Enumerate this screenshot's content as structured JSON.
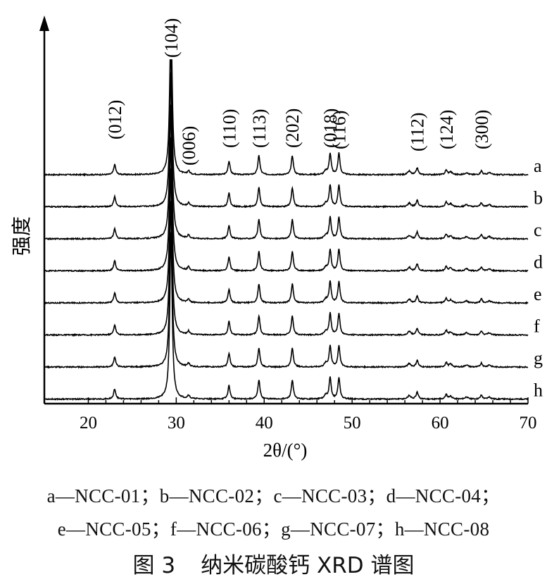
{
  "chart_data": {
    "type": "line",
    "title": "",
    "xlabel": "2θ/(°)",
    "ylabel": "强度",
    "xlim": [
      15,
      70
    ],
    "xticks": [
      20,
      30,
      40,
      50,
      60,
      70
    ],
    "grid": false,
    "peaks": [
      {
        "x": 23.0,
        "label": "(012)",
        "rel": 0.09
      },
      {
        "x": 29.4,
        "label": "(104)",
        "rel": 1.0
      },
      {
        "x": 31.4,
        "label": "(006)",
        "rel": 0.03
      },
      {
        "x": 36.0,
        "label": "(110)",
        "rel": 0.12
      },
      {
        "x": 39.4,
        "label": "(113)",
        "rel": 0.17
      },
      {
        "x": 43.2,
        "label": "(202)",
        "rel": 0.17
      },
      {
        "x": 47.5,
        "label": "(018)",
        "rel": 0.19
      },
      {
        "x": 48.5,
        "label": "(116)",
        "rel": 0.19
      },
      {
        "x": 57.4,
        "label": "(112)",
        "rel": 0.06
      },
      {
        "x": 60.7,
        "label": "(124)",
        "rel": 0.04
      },
      {
        "x": 64.7,
        "label": "(300)",
        "rel": 0.035
      }
    ],
    "series": [
      {
        "name": "a",
        "sample": "NCC-01"
      },
      {
        "name": "b",
        "sample": "NCC-02"
      },
      {
        "name": "c",
        "sample": "NCC-03"
      },
      {
        "name": "d",
        "sample": "NCC-04"
      },
      {
        "name": "e",
        "sample": "NCC-05"
      },
      {
        "name": "f",
        "sample": "NCC-06"
      },
      {
        "name": "g",
        "sample": "NCC-07"
      },
      {
        "name": "h",
        "sample": "NCC-08"
      }
    ]
  },
  "legend": {
    "line1": "a—NCC-01；b—NCC-02；c—NCC-03；d—NCC-04；",
    "line2": "e—NCC-05；f—NCC-06；g—NCC-07；h—NCC-08"
  },
  "caption": {
    "figure_no": "图 3",
    "title": "纳米碳酸钙 XRD 谱图"
  }
}
